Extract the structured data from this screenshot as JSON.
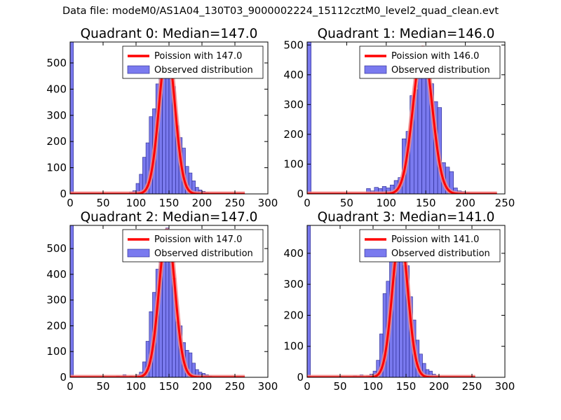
{
  "figure": {
    "suptitle": "Data file: modeM0/AS1A04_130T03_9000002224_15112cztM0_level2_quad_clean.evt"
  },
  "colors": {
    "bar_fill": "#7a7aef",
    "bar_edge": "#23238a",
    "poisson": "#ff0000",
    "poisson_halo": "#f08a8a",
    "axis": "#000000"
  },
  "chart_data": [
    {
      "type": "bar",
      "title": "Quadrant 0: Median=147.0",
      "median": 147.0,
      "xlim": [
        0,
        300
      ],
      "ylim": [
        0,
        580
      ],
      "xticks": [
        "0",
        "50",
        "100",
        "150",
        "200",
        "250",
        "300"
      ],
      "yticks": [
        "0",
        "100",
        "200",
        "300",
        "400",
        "500"
      ],
      "bin_width": 5,
      "bins": [
        {
          "x": 0,
          "value": 580
        },
        {
          "x": 85,
          "value": 3
        },
        {
          "x": 90,
          "value": 8
        },
        {
          "x": 95,
          "value": 12
        },
        {
          "x": 100,
          "value": 40
        },
        {
          "x": 105,
          "value": 75
        },
        {
          "x": 110,
          "value": 140
        },
        {
          "x": 115,
          "value": 195
        },
        {
          "x": 120,
          "value": 295
        },
        {
          "x": 125,
          "value": 325
        },
        {
          "x": 130,
          "value": 420
        },
        {
          "x": 135,
          "value": 470
        },
        {
          "x": 140,
          "value": 535
        },
        {
          "x": 145,
          "value": 555
        },
        {
          "x": 150,
          "value": 520
        },
        {
          "x": 155,
          "value": 410
        },
        {
          "x": 160,
          "value": 260
        },
        {
          "x": 165,
          "value": 215
        },
        {
          "x": 170,
          "value": 175
        },
        {
          "x": 175,
          "value": 105
        },
        {
          "x": 180,
          "value": 80
        },
        {
          "x": 185,
          "value": 50
        },
        {
          "x": 190,
          "value": 25
        },
        {
          "x": 195,
          "value": 15
        },
        {
          "x": 200,
          "value": 10
        },
        {
          "x": 205,
          "value": 5
        },
        {
          "x": 210,
          "value": 3
        }
      ],
      "poisson_peak": 555,
      "poisson_range": [
        0,
        265
      ],
      "legend": {
        "position": "upper-right",
        "entries": [
          "Poission with 147.0",
          "Observed distribution"
        ]
      }
    },
    {
      "type": "bar",
      "title": "Quadrant 1: Median=146.0",
      "median": 146.0,
      "xlim": [
        0,
        250
      ],
      "ylim": [
        0,
        510
      ],
      "xticks": [
        "0",
        "50",
        "100",
        "150",
        "200",
        "250"
      ],
      "yticks": [
        "0",
        "100",
        "200",
        "300",
        "400",
        "500"
      ],
      "bin_width": 5,
      "bins": [
        {
          "x": 0,
          "value": 510
        },
        {
          "x": 75,
          "value": 18
        },
        {
          "x": 80,
          "value": 10
        },
        {
          "x": 85,
          "value": 22
        },
        {
          "x": 90,
          "value": 18
        },
        {
          "x": 95,
          "value": 25
        },
        {
          "x": 100,
          "value": 20
        },
        {
          "x": 105,
          "value": 30
        },
        {
          "x": 110,
          "value": 45
        },
        {
          "x": 115,
          "value": 55
        },
        {
          "x": 120,
          "value": 185
        },
        {
          "x": 125,
          "value": 210
        },
        {
          "x": 130,
          "value": 330
        },
        {
          "x": 135,
          "value": 350
        },
        {
          "x": 140,
          "value": 430
        },
        {
          "x": 145,
          "value": 480
        },
        {
          "x": 150,
          "value": 460
        },
        {
          "x": 155,
          "value": 370
        },
        {
          "x": 160,
          "value": 310
        },
        {
          "x": 165,
          "value": 290
        },
        {
          "x": 170,
          "value": 105
        },
        {
          "x": 175,
          "value": 90
        },
        {
          "x": 180,
          "value": 75
        },
        {
          "x": 185,
          "value": 20
        },
        {
          "x": 190,
          "value": 10
        },
        {
          "x": 195,
          "value": 8
        },
        {
          "x": 200,
          "value": 5
        }
      ],
      "poisson_peak": 490,
      "poisson_range": [
        0,
        240
      ],
      "legend": {
        "position": "upper-right",
        "entries": [
          "Poission with 146.0",
          "Observed distribution"
        ]
      }
    },
    {
      "type": "bar",
      "title": "Quadrant 2: Median=147.0",
      "median": 147.0,
      "xlim": [
        0,
        300
      ],
      "ylim": [
        0,
        590
      ],
      "xticks": [
        "0",
        "50",
        "100",
        "150",
        "200",
        "250",
        "300"
      ],
      "yticks": [
        "0",
        "100",
        "200",
        "300",
        "400",
        "500"
      ],
      "bin_width": 5,
      "bins": [
        {
          "x": 0,
          "value": 590
        },
        {
          "x": 70,
          "value": 5
        },
        {
          "x": 80,
          "value": 10
        },
        {
          "x": 90,
          "value": 5
        },
        {
          "x": 100,
          "value": 10
        },
        {
          "x": 105,
          "value": 20
        },
        {
          "x": 110,
          "value": 60
        },
        {
          "x": 115,
          "value": 140
        },
        {
          "x": 120,
          "value": 255
        },
        {
          "x": 125,
          "value": 330
        },
        {
          "x": 130,
          "value": 420
        },
        {
          "x": 135,
          "value": 480
        },
        {
          "x": 140,
          "value": 555
        },
        {
          "x": 145,
          "value": 580
        },
        {
          "x": 150,
          "value": 520
        },
        {
          "x": 155,
          "value": 385
        },
        {
          "x": 160,
          "value": 215
        },
        {
          "x": 165,
          "value": 200
        },
        {
          "x": 170,
          "value": 135
        },
        {
          "x": 175,
          "value": 105
        },
        {
          "x": 180,
          "value": 95
        },
        {
          "x": 185,
          "value": 55
        },
        {
          "x": 190,
          "value": 30
        },
        {
          "x": 195,
          "value": 20
        },
        {
          "x": 200,
          "value": 15
        },
        {
          "x": 205,
          "value": 10
        },
        {
          "x": 210,
          "value": 5
        }
      ],
      "poisson_peak": 570,
      "poisson_range": [
        0,
        265
      ],
      "legend": {
        "position": "upper-right",
        "entries": [
          "Poission with 147.0",
          "Observed distribution"
        ]
      }
    },
    {
      "type": "bar",
      "title": "Quadrant 3: Median=141.0",
      "median": 141.0,
      "xlim": [
        0,
        300
      ],
      "ylim": [
        0,
        490
      ],
      "xticks": [
        "0",
        "50",
        "100",
        "150",
        "200",
        "250",
        "300"
      ],
      "yticks": [
        "0",
        "100",
        "200",
        "300",
        "400"
      ],
      "bin_width": 5,
      "bins": [
        {
          "x": 0,
          "value": 490
        },
        {
          "x": 70,
          "value": 5
        },
        {
          "x": 75,
          "value": 3
        },
        {
          "x": 80,
          "value": 8
        },
        {
          "x": 90,
          "value": 5
        },
        {
          "x": 95,
          "value": 10
        },
        {
          "x": 100,
          "value": 20
        },
        {
          "x": 105,
          "value": 55
        },
        {
          "x": 110,
          "value": 140
        },
        {
          "x": 115,
          "value": 270
        },
        {
          "x": 120,
          "value": 310
        },
        {
          "x": 125,
          "value": 390
        },
        {
          "x": 130,
          "value": 430
        },
        {
          "x": 135,
          "value": 455
        },
        {
          "x": 140,
          "value": 420
        },
        {
          "x": 145,
          "value": 360
        },
        {
          "x": 150,
          "value": 360
        },
        {
          "x": 155,
          "value": 260
        },
        {
          "x": 160,
          "value": 185
        },
        {
          "x": 165,
          "value": 120
        },
        {
          "x": 170,
          "value": 75
        },
        {
          "x": 175,
          "value": 45
        },
        {
          "x": 180,
          "value": 25
        },
        {
          "x": 185,
          "value": 20
        },
        {
          "x": 190,
          "value": 10
        },
        {
          "x": 195,
          "value": 5
        }
      ],
      "poisson_peak": 460,
      "poisson_range": [
        0,
        255
      ],
      "legend": {
        "position": "upper-right",
        "entries": [
          "Poission with 141.0",
          "Observed distribution"
        ]
      }
    }
  ]
}
